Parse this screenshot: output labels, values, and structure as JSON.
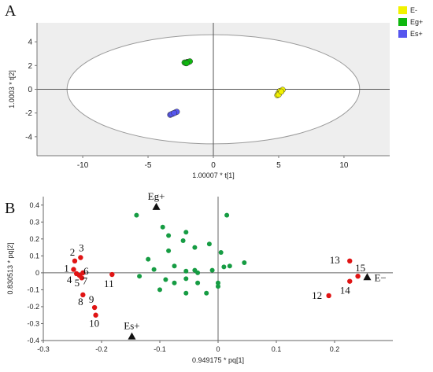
{
  "chart_data": [
    {
      "panel": "A",
      "type": "scatter",
      "title": "",
      "xlabel": "1.00007 * t[1]",
      "ylabel": "1.0003 * t[2]",
      "xlim": [
        -13.5,
        13.5
      ],
      "ylim": [
        -5.6,
        5.6
      ],
      "xticks": [
        -10,
        -5,
        0,
        5,
        10
      ],
      "yticks": [
        -4,
        -2,
        0,
        2,
        4
      ],
      "grid": false,
      "legend_placement": "top-right",
      "series": [
        {
          "name": "E-",
          "color": "#f2f200",
          "points": [
            [
              4.9,
              -0.5
            ],
            [
              5.0,
              -0.3
            ],
            [
              5.1,
              -0.15
            ],
            [
              5.3,
              -0.05
            ],
            [
              5.0,
              -0.45
            ],
            [
              5.2,
              -0.2
            ]
          ]
        },
        {
          "name": "Eg+",
          "color": "#0fb70f",
          "points": [
            [
              -2.1,
              2.2
            ],
            [
              -2.0,
              2.3
            ],
            [
              -1.9,
              2.3
            ],
            [
              -2.2,
              2.25
            ],
            [
              -1.8,
              2.35
            ],
            [
              -2.05,
              2.2
            ]
          ]
        },
        {
          "name": "Es+",
          "color": "#5656ee",
          "points": [
            [
              -3.3,
              -2.15
            ],
            [
              -3.1,
              -2.05
            ],
            [
              -2.9,
              -1.95
            ],
            [
              -2.8,
              -1.9
            ],
            [
              -3.2,
              -2.1
            ],
            [
              -3.0,
              -2.0
            ]
          ]
        }
      ],
      "ellipse": {
        "cx": 0,
        "cy": 0,
        "rx": 11.2,
        "ry": 4.6
      }
    },
    {
      "panel": "B",
      "type": "scatter",
      "title": "",
      "xlabel": "0.949175 * pq[1]",
      "ylabel": "0.830513 * pq[2]",
      "xlim": [
        -0.3,
        0.3
      ],
      "ylim": [
        -0.4,
        0.45
      ],
      "xticks": [
        -0.3,
        -0.2,
        -0.1,
        0,
        0.1,
        0.2
      ],
      "xtick_labels": [
        "-0.3",
        "-0.2",
        "-0.1",
        "0",
        "0.1",
        "0.2"
      ],
      "yticks": [
        -0.4,
        -0.3,
        -0.2,
        -0.1,
        0,
        0.1,
        0.2,
        0.3,
        0.4
      ],
      "ytick_labels": [
        "-0.4",
        "-0.3",
        "-0.2",
        "-0.1",
        "0",
        "0.1",
        "0.2",
        "0.3",
        "0.4"
      ],
      "grid": false,
      "variables": [
        [
          -0.14,
          0.34
        ],
        [
          -0.095,
          0.27
        ],
        [
          -0.085,
          0.22
        ],
        [
          -0.055,
          0.24
        ],
        [
          0.015,
          0.34
        ],
        [
          -0.06,
          0.19
        ],
        [
          -0.04,
          0.15
        ],
        [
          -0.015,
          0.17
        ],
        [
          -0.085,
          0.13
        ],
        [
          0.005,
          0.12
        ],
        [
          -0.12,
          0.08
        ],
        [
          -0.11,
          0.02
        ],
        [
          -0.075,
          0.04
        ],
        [
          -0.055,
          0.01
        ],
        [
          -0.035,
          0.0
        ],
        [
          -0.01,
          0.015
        ],
        [
          0.01,
          0.035
        ],
        [
          0.02,
          0.04
        ],
        [
          0.045,
          0.06
        ],
        [
          -0.09,
          -0.04
        ],
        [
          -0.075,
          -0.06
        ],
        [
          -0.055,
          -0.035
        ],
        [
          -0.035,
          -0.06
        ],
        [
          0.0,
          -0.08
        ],
        [
          -0.02,
          -0.12
        ],
        [
          -0.055,
          -0.12
        ],
        [
          -0.1,
          -0.1
        ],
        [
          -0.135,
          -0.02
        ],
        [
          -0.04,
          0.015
        ],
        [
          -0.0,
          -0.06
        ]
      ],
      "marked_variables": [
        {
          "label": "1",
          "x": -0.248,
          "y": 0.02
        },
        {
          "label": "2",
          "x": -0.246,
          "y": 0.07
        },
        {
          "label": "3",
          "x": -0.236,
          "y": 0.09
        },
        {
          "label": "4",
          "x": -0.243,
          "y": -0.005
        },
        {
          "label": "5",
          "x": -0.238,
          "y": -0.015
        },
        {
          "label": "6",
          "x": -0.232,
          "y": 0.0
        },
        {
          "label": "7",
          "x": -0.234,
          "y": -0.03
        },
        {
          "label": "8",
          "x": -0.232,
          "y": -0.13
        },
        {
          "label": "9",
          "x": -0.212,
          "y": -0.205
        },
        {
          "label": "10",
          "x": -0.21,
          "y": -0.25
        },
        {
          "label": "11",
          "x": -0.182,
          "y": -0.01
        },
        {
          "label": "12",
          "x": 0.19,
          "y": -0.135
        },
        {
          "label": "13",
          "x": 0.226,
          "y": 0.07
        },
        {
          "label": "14",
          "x": 0.226,
          "y": -0.05
        },
        {
          "label": "15",
          "x": 0.24,
          "y": -0.02
        }
      ],
      "observations": [
        {
          "label": "Eg+",
          "x": -0.106,
          "y": 0.39
        },
        {
          "label": "Es+",
          "x": -0.148,
          "y": -0.375
        },
        {
          "label": "E−",
          "x": 0.256,
          "y": -0.025
        }
      ],
      "colors": {
        "variables": "#169c43",
        "marked": "#e01414",
        "observations": "#111111"
      }
    }
  ],
  "panels": {
    "a_label": "A",
    "b_label": "B"
  }
}
